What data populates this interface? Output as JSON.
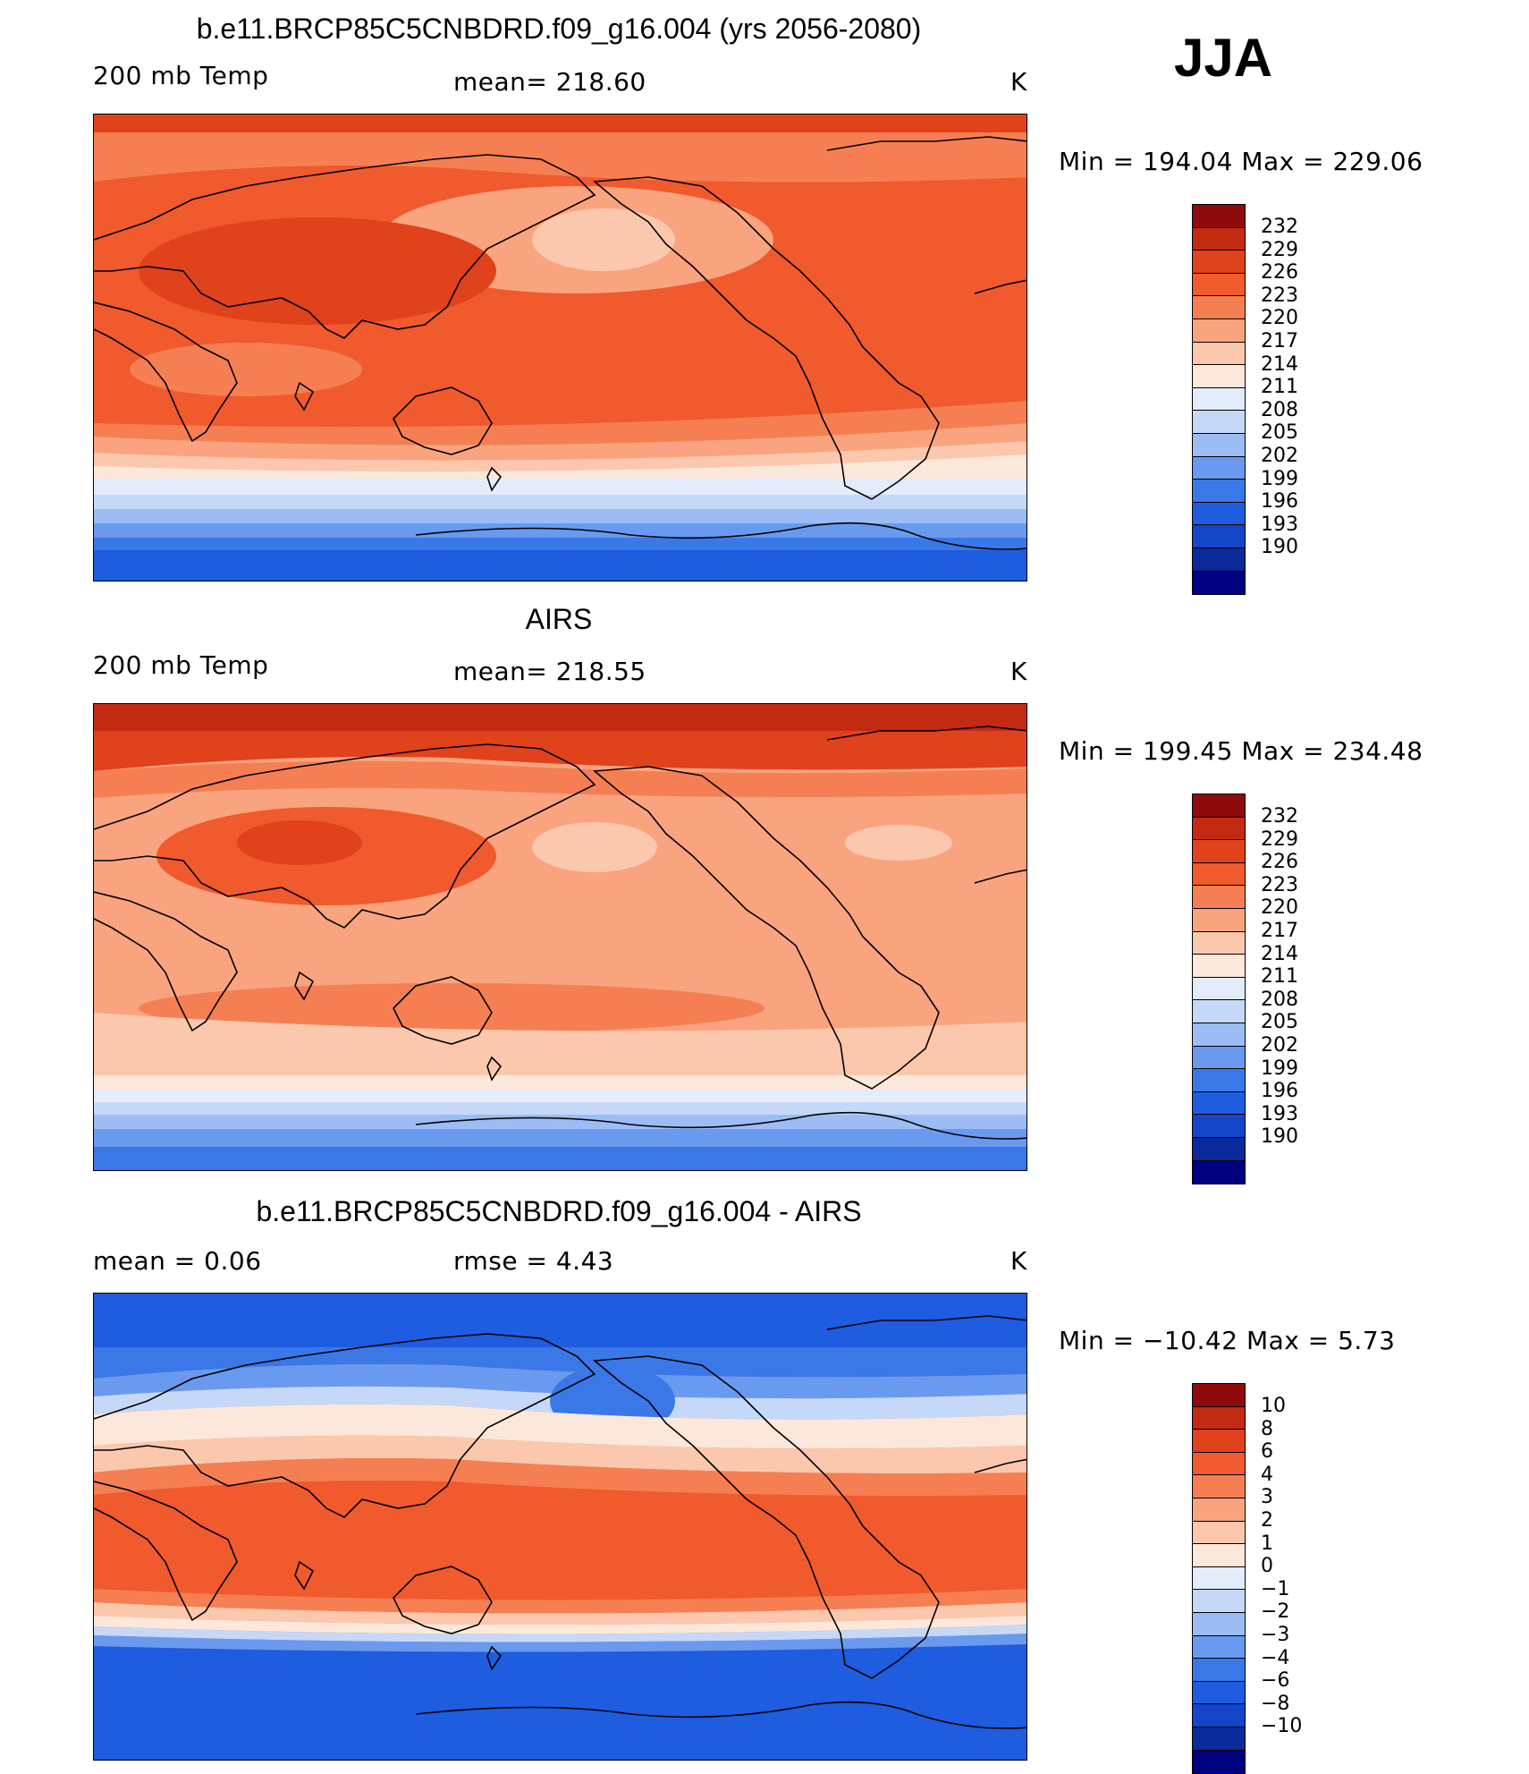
{
  "season": "JJA",
  "colors": {
    "temp": [
      "#000080",
      "#0a2a9b",
      "#1444c7",
      "#1e5ce0",
      "#3a78e8",
      "#6a9af0",
      "#9bbcf5",
      "#c5d8f8",
      "#e2ecfb",
      "#fce8da",
      "#fbc8ae",
      "#f9a47f",
      "#f57f52",
      "#f05a2c",
      "#e0421b",
      "#c32a12",
      "#8f0a0a"
    ],
    "diff": [
      "#000080",
      "#0a2a9b",
      "#1444c7",
      "#1e5ce0",
      "#3a78e8",
      "#6a9af0",
      "#9bbcf5",
      "#c5d8f8",
      "#e2ecfb",
      "#fce8da",
      "#fbc8ae",
      "#f9a47f",
      "#f57f52",
      "#f05a2c",
      "#e0421b",
      "#c32a12",
      "#8f0a0a"
    ]
  },
  "panels": [
    {
      "title": "b.e11.BRCP85C5CNBDRD.f09_g16.004 (yrs 2056-2080)",
      "left_label": "200 mb Temp",
      "center_label": "mean=  218.60",
      "units": "K",
      "minmax": "Min  =  194.04  Max  =  229.06",
      "colorbar_ticks": [
        "232",
        "229",
        "226",
        "223",
        "220",
        "217",
        "214",
        "211",
        "208",
        "205",
        "202",
        "199",
        "196",
        "193",
        "190"
      ]
    },
    {
      "title": "AIRS",
      "left_label": "200 mb Temp",
      "center_label": "mean=  218.55",
      "units": "K",
      "minmax": "Min  =  199.45  Max  =  234.48",
      "colorbar_ticks": [
        "232",
        "229",
        "226",
        "223",
        "220",
        "217",
        "214",
        "211",
        "208",
        "205",
        "202",
        "199",
        "196",
        "193",
        "190"
      ]
    },
    {
      "title": "b.e11.BRCP85C5CNBDRD.f09_g16.004 - AIRS",
      "left_label": "mean =      0.06",
      "center_label": "rmse =      4.43",
      "units": "K",
      "minmax": "Min  =  −10.42  Max  =      5.73",
      "colorbar_ticks": [
        "10",
        "8",
        "6",
        "4",
        "3",
        "2",
        "1",
        "0",
        "−1",
        "−2",
        "−3",
        "−4",
        "−6",
        "−8",
        "−10"
      ]
    }
  ]
}
